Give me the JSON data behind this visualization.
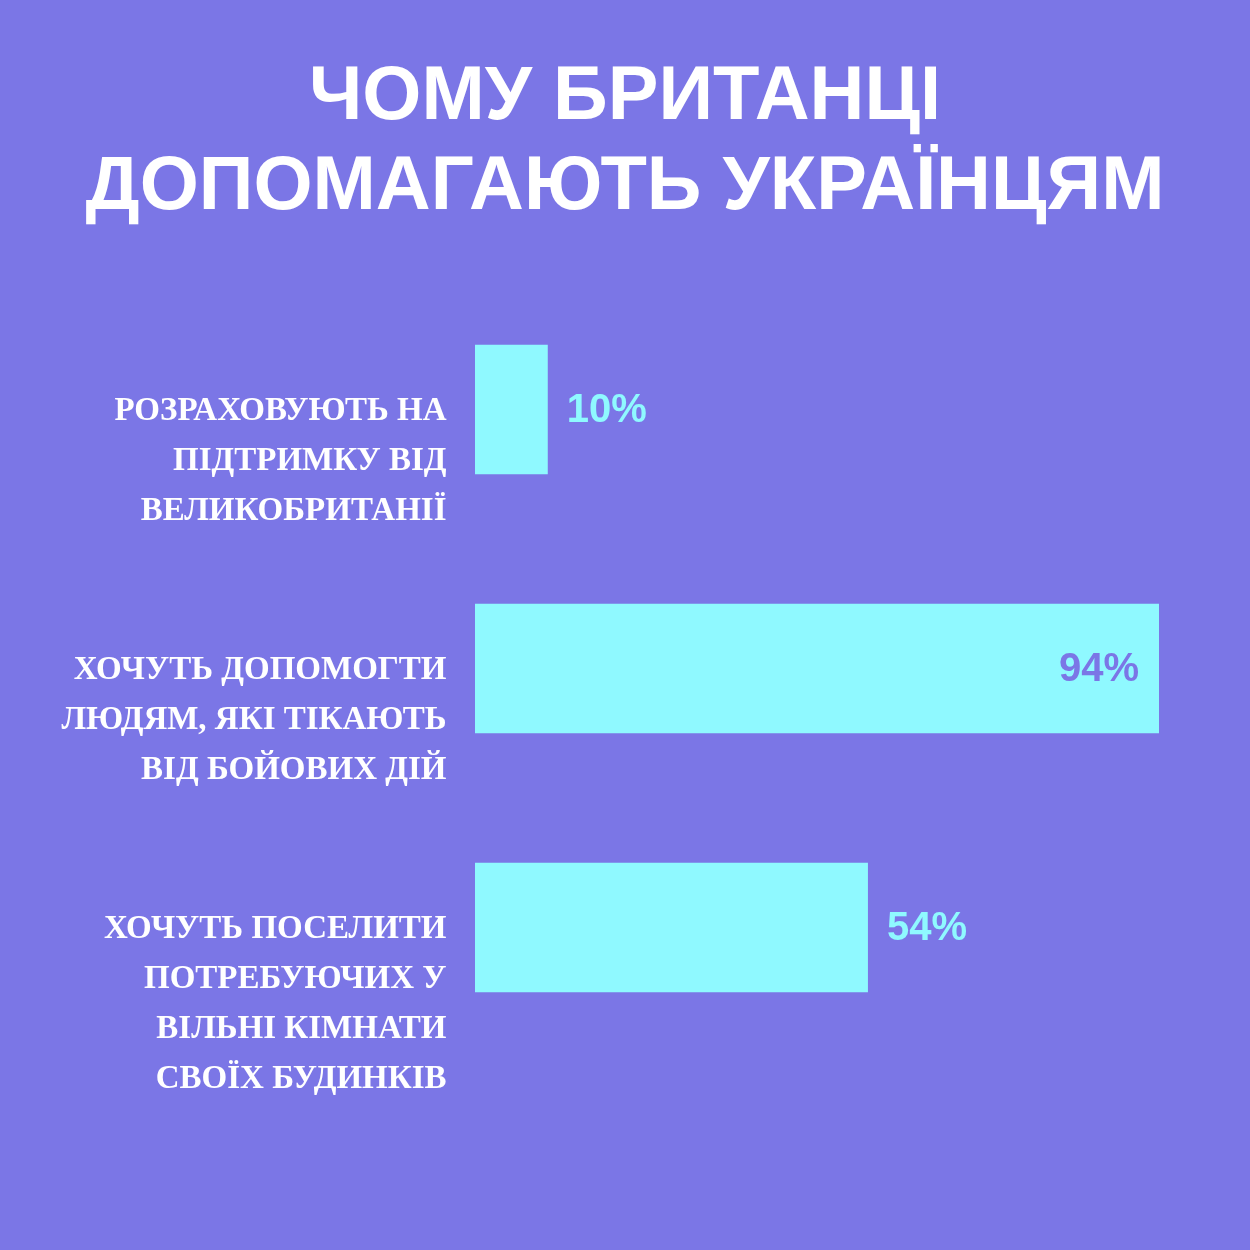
{
  "chart_data": {
    "type": "bar",
    "title": "ЧОМУ БРИТАНЦІ ДОПОМАГАЮТЬ УКРАЇНЦЯМ",
    "orientation": "horizontal",
    "color": "#8ff9ff",
    "value_labels": [
      "10%",
      "94%",
      "54%"
    ],
    "categories": [
      "РОЗРАХОВУЮТЬ НА ПІДТРИМКУ ВІД ВЕЛИКОБРИТАНІЇ",
      "ХОЧУТЬ ДОПОМОГТИ ЛЮДЯМ, ЯКІ ТІКАЮТЬ ВІД БОЙОВИХ ДІЙ",
      "ХОЧУТЬ ПОСЕЛИТИ ПОТРЕБУЮЧИХ У ВІЛЬНІ КІМНАТИ СВОЇХ БУДИНКІВ"
    ],
    "values": [
      10,
      94,
      54
    ]
  }
}
